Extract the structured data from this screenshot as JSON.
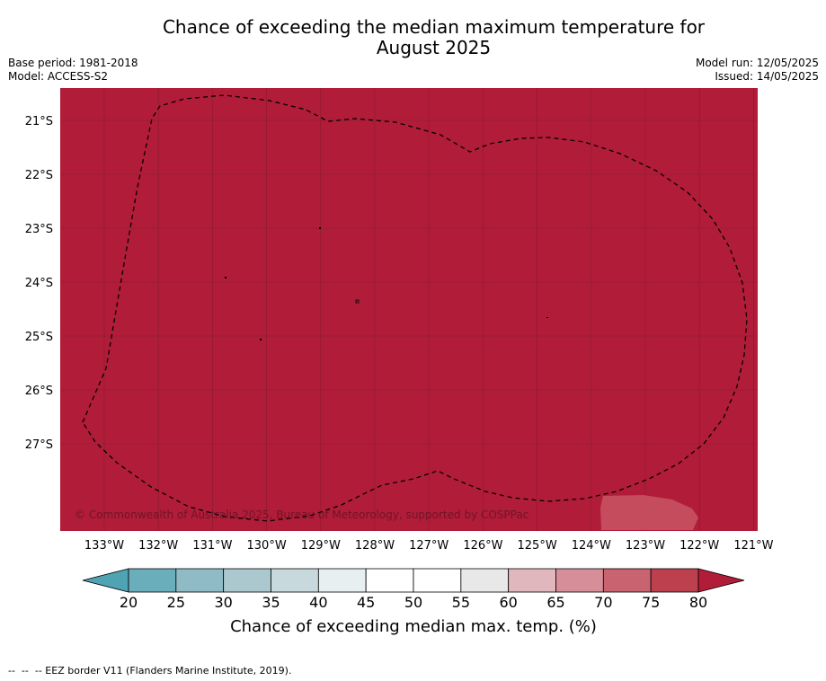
{
  "header": {
    "title_line1": "Chance of exceeding the median maximum temperature for",
    "title_line2": "August 2025",
    "base_period": "Base period: 1981-2018",
    "model": "Model: ACCESS-S2",
    "model_run": "Model run: 12/05/2025",
    "issued": "Issued: 14/05/2025"
  },
  "map": {
    "fill_color": "#b11c38",
    "fill_value_percent": 80,
    "light_patch_color": "#c44c5c",
    "copyright": "© Commonwealth of Australia 2025, Bureau of Meteorology, supported by COSPPac",
    "lat_labels": [
      "21°S",
      "22°S",
      "23°S",
      "24°S",
      "25°S",
      "26°S",
      "27°S"
    ],
    "lon_labels": [
      "133°W",
      "132°W",
      "131°W",
      "130°W",
      "129°W",
      "128°W",
      "127°W",
      "126°W",
      "125°W",
      "124°W",
      "123°W",
      "122°W",
      "121°W"
    ]
  },
  "colorbar": {
    "ticks": [
      "20",
      "25",
      "30",
      "35",
      "40",
      "45",
      "50",
      "55",
      "60",
      "65",
      "70",
      "75",
      "80"
    ],
    "colors": [
      "#6aaebc",
      "#8fbbc6",
      "#abc8cf",
      "#c7d9dd",
      "#e8eff1",
      "#ffffff",
      "#ffffff",
      "#e8e8e9",
      "#e0b7bd",
      "#d68f98",
      "#c96370",
      "#bd404f"
    ],
    "low_arrow_color": "#4fa3b3",
    "high_arrow_color": "#b11c38",
    "label": "Chance of exceeding median max. temp. (%)"
  },
  "footer": {
    "legend_text": "--  --  -- EEZ border V11 (Flanders Marine Institute, 2019)."
  }
}
